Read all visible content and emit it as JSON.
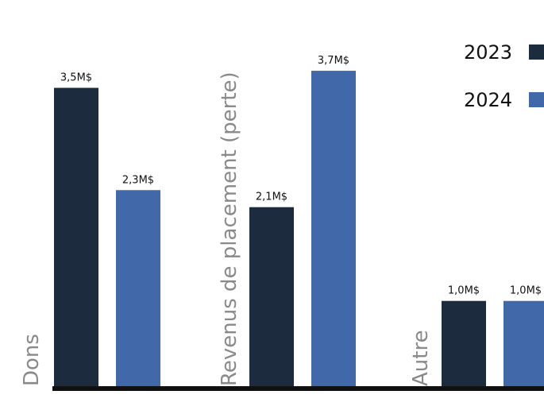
{
  "chart_data": {
    "type": "bar",
    "categories": [
      "Dons",
      "Revenus de placement (perte)",
      "Autre"
    ],
    "series": [
      {
        "name": "2023",
        "color": "#1c2b3d",
        "values": [
          3.5,
          2.1,
          1.0
        ],
        "labels": [
          "3,5M$",
          "2,1M$",
          "1,0M$"
        ]
      },
      {
        "name": "2024",
        "color": "#4169aa",
        "values": [
          2.3,
          3.7,
          1.0
        ],
        "labels": [
          "2,3M$",
          "3,7M$",
          "1,0M$"
        ]
      }
    ],
    "ylim": [
      0,
      4.1
    ],
    "grid": false,
    "legend": "top-right",
    "axis_color": "#111111"
  }
}
